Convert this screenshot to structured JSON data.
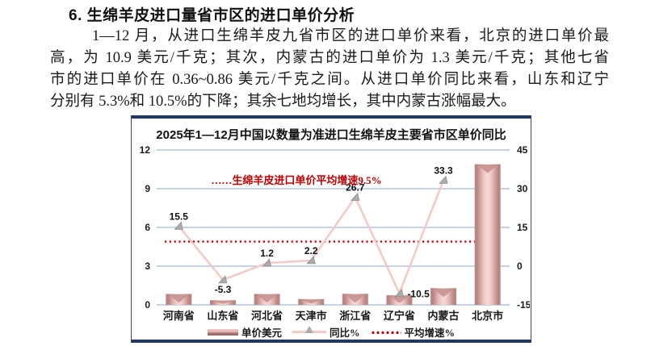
{
  "page": {
    "heading": "6. 生绵羊皮进口量省市区的进口单价分析",
    "paragraph_lines": [
      "1—12 月，从进口生绵羊皮九省市区的进口单价来看，北京的进口单价最",
      "高，为 10.9 美元/千克；其次，内蒙古的进口单价为 1.3 美元/千克；其他七省",
      "市的进口单价在 0.36~0.86 美元/千克之间。从进口单价同比来看，山东和辽宁",
      "分别有 5.3%和 10.5%的下降；其余七地均增长，其中内蒙古涨幅最大。"
    ]
  },
  "chart_data": {
    "type": "bar",
    "title": "2025年1—12月中国以数量为准进口生绵羊皮主要省市区单价同比",
    "categories": [
      "河南省",
      "山东省",
      "河北省",
      "天津市",
      "浙江省",
      "辽宁省",
      "内蒙古",
      "北京市"
    ],
    "series": [
      {
        "name": "单价美元",
        "type": "bar",
        "axis": "left",
        "values": [
          0.85,
          0.36,
          0.85,
          0.45,
          0.86,
          0.75,
          1.3,
          10.9
        ]
      },
      {
        "name": "同比%",
        "type": "line",
        "axis": "right",
        "values": [
          15.5,
          -5.3,
          1.2,
          2.2,
          26.7,
          -10.5,
          33.3,
          null
        ],
        "labels": [
          "15.5",
          "-5.3",
          "1.2",
          "2.2",
          "26.7",
          "-10.5",
          "33.3",
          ""
        ]
      },
      {
        "name": "平均增速%",
        "type": "dotted-line",
        "axis": "right",
        "value": 9.5
      }
    ],
    "annotation": "……生绵羊皮进口单价平均增速9.5%",
    "left_axis": {
      "ticks": [
        0,
        3,
        6,
        9,
        12
      ],
      "range": [
        0,
        12
      ]
    },
    "right_axis": {
      "ticks": [
        -15,
        0,
        15,
        30,
        45
      ],
      "range": [
        -15,
        45
      ]
    },
    "legend": [
      "单价美元",
      "同比%",
      "平均增速%"
    ],
    "grid": "on",
    "legend_position": "bottom",
    "colors": {
      "bar_dark": "#b98683",
      "bar_mid": "#ecc3c1",
      "bar_light": "#f7dcda",
      "bar_notch": "#c6928f",
      "line": "#f2cbc9",
      "marker": "#ababab",
      "dotted": "#c00000",
      "annotation": "#c00000",
      "grid": "#9db9dd",
      "border_navy": "#1f3864"
    }
  }
}
